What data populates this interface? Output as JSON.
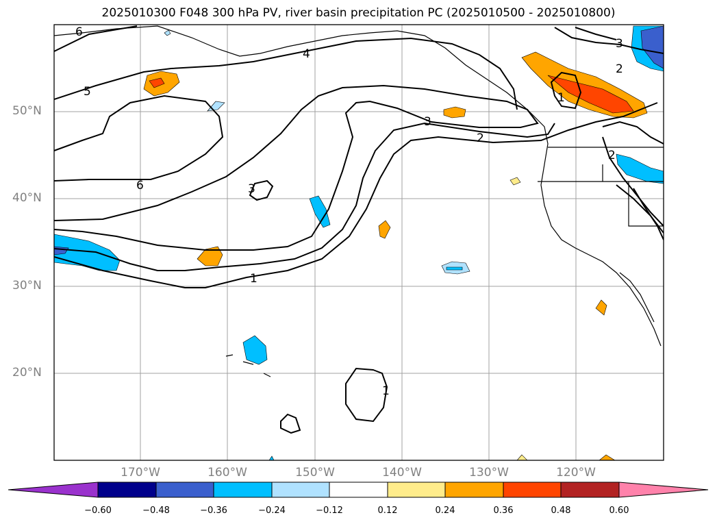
{
  "title": "2025010300 F048 300 hPa PV, river basin precipitation PC (2025010500 - 2025010800)",
  "map": {
    "lat_labels": [
      "50°N",
      "40°N",
      "30°N",
      "20°N"
    ],
    "lon_labels": [
      "170°W",
      "160°W",
      "150°W",
      "140°W",
      "130°W",
      "120°W"
    ],
    "contour_labels": [
      "6",
      "5",
      "4",
      "6",
      "3",
      "2",
      "3",
      "2",
      "1",
      "1",
      "3",
      "2",
      "1"
    ],
    "grid_color": "#a0a0a0"
  },
  "colorbar": {
    "colors": [
      "#9a32cd",
      "#00008b",
      "#3a5fcd",
      "#00bfff",
      "#b0e2ff",
      "#ffffff",
      "#ffec8b",
      "#ffa500",
      "#ff4500",
      "#b22222",
      "#ff82ab"
    ],
    "tick_labels": [
      "−0.60",
      "−0.48",
      "−0.36",
      "−0.24",
      "−0.12",
      "0.12",
      "0.24",
      "0.36",
      "0.48",
      "0.60"
    ]
  }
}
